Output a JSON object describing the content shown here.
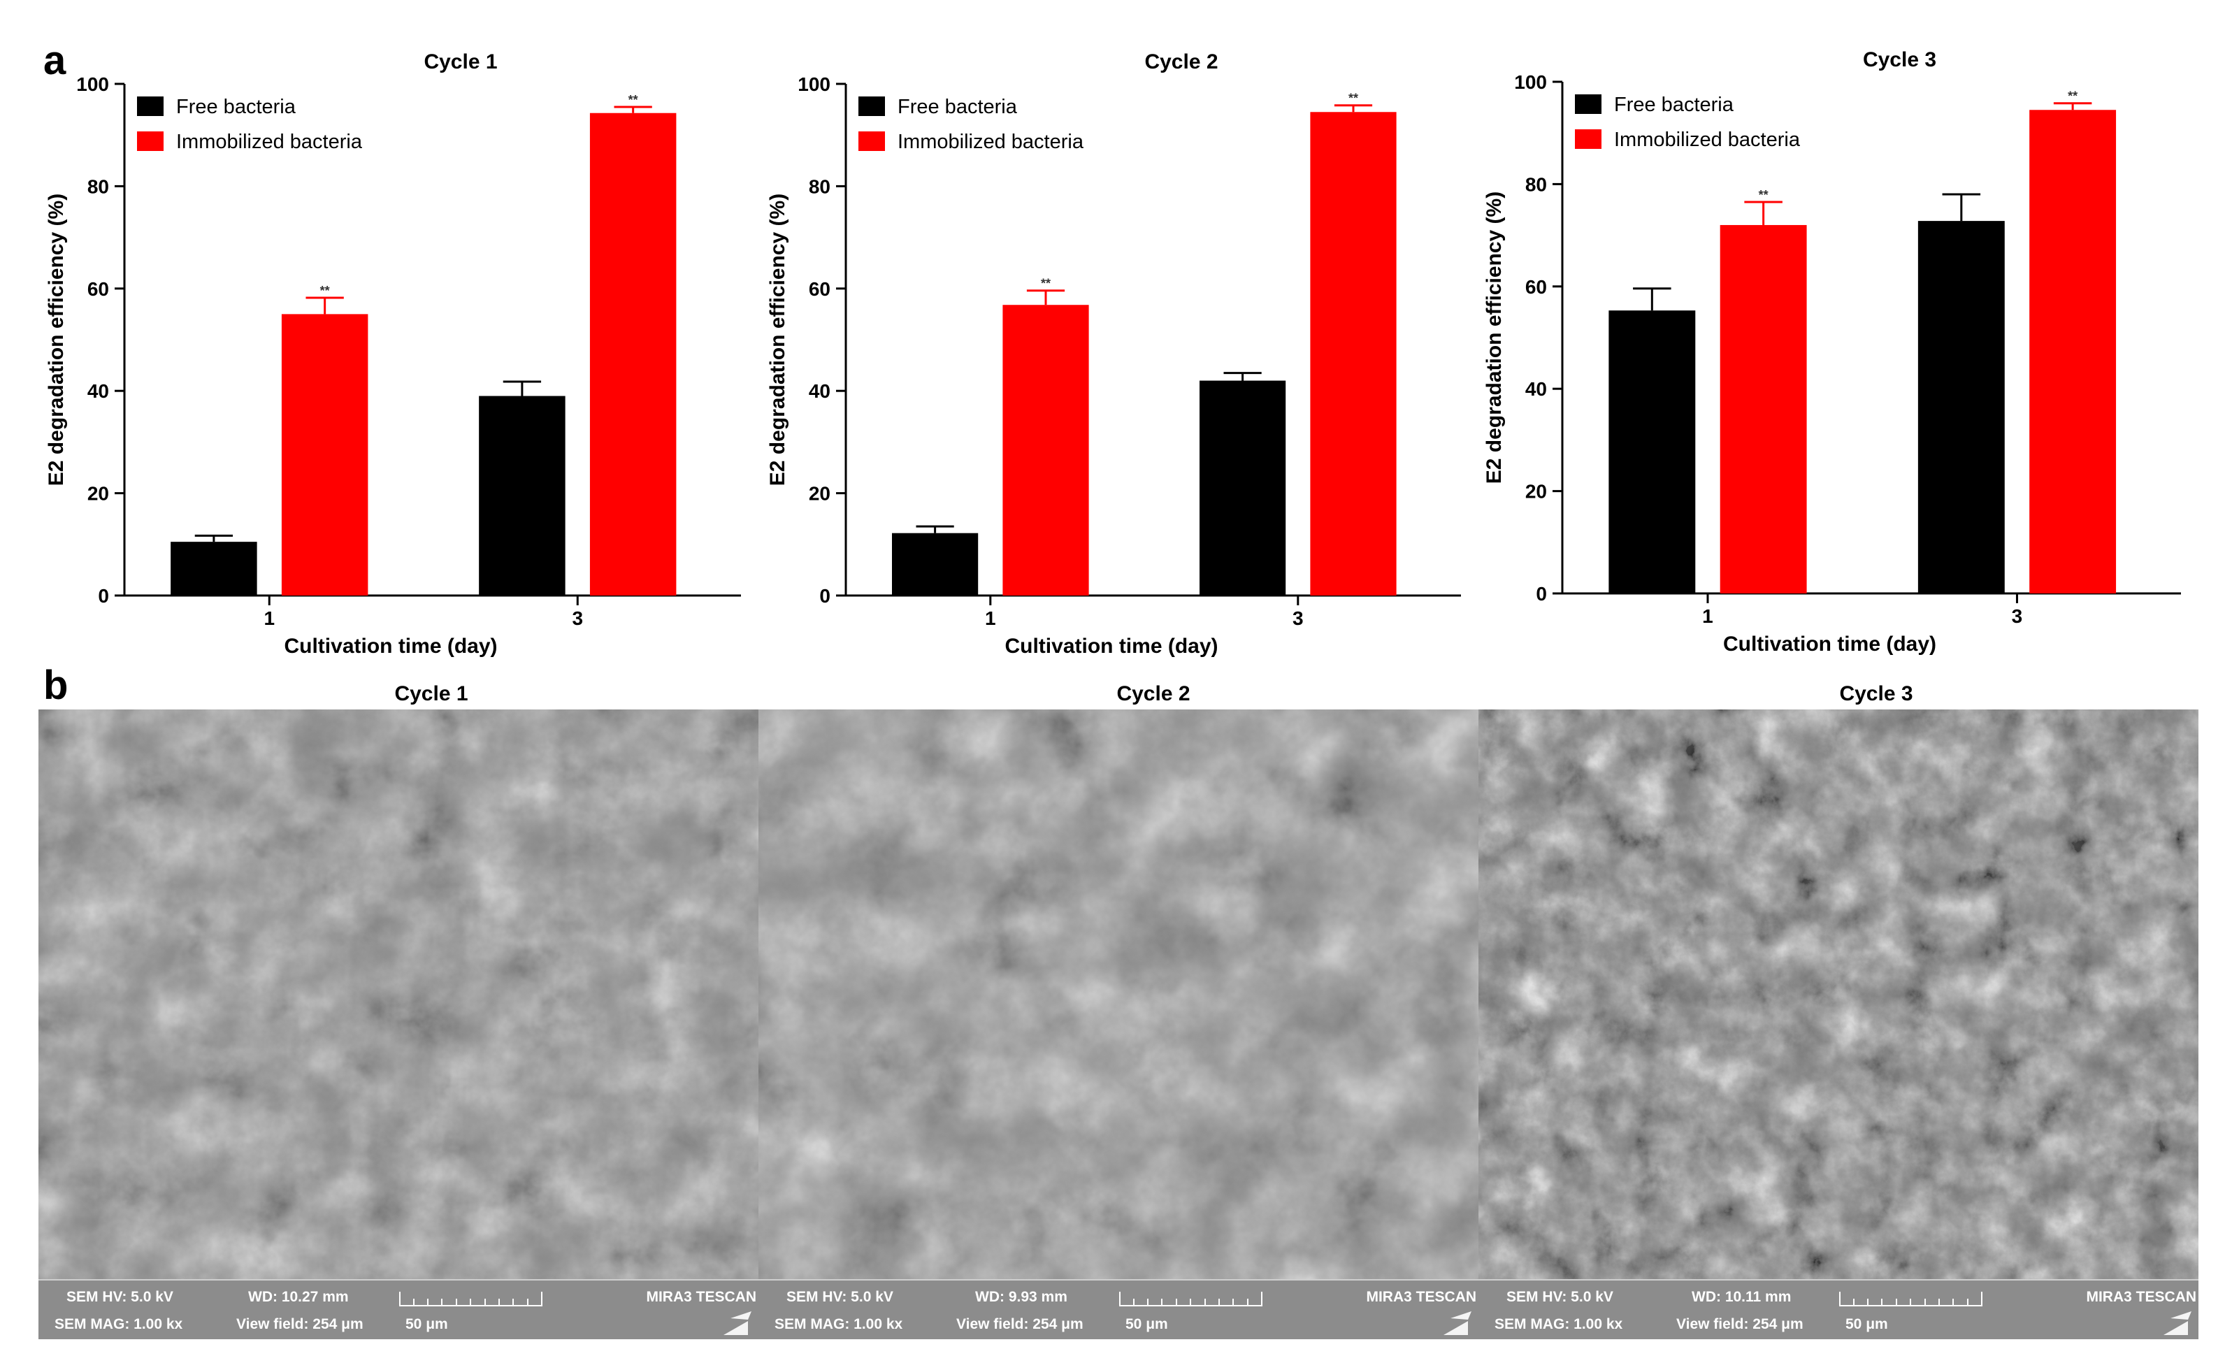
{
  "panel_labels": [
    "a",
    "b"
  ],
  "chart_data": [
    {
      "type": "bar",
      "title": "Cycle 1",
      "xlabel": "Cultivation time (day)",
      "ylabel": "E2 degradation efficiency (%)",
      "ylim": [
        0,
        100
      ],
      "yticks": [
        0,
        20,
        40,
        60,
        80,
        100
      ],
      "categories": [
        "1",
        "3"
      ],
      "legend_position": "top-left",
      "series": [
        {
          "name": "Free bacteria",
          "color": "#000000",
          "values": [
            10.5,
            39
          ],
          "errors": [
            1.2,
            2.8
          ],
          "significance": [
            "",
            ""
          ]
        },
        {
          "name": "Immobilized bacteria",
          "color": "#ff0000",
          "values": [
            55,
            94.3
          ],
          "errors": [
            3.2,
            1.2
          ],
          "significance": [
            "**",
            "**"
          ]
        }
      ]
    },
    {
      "type": "bar",
      "title": "Cycle 2",
      "xlabel": "Cultivation time (day)",
      "ylabel": "E2 degradation efficiency (%)",
      "ylim": [
        0,
        100
      ],
      "yticks": [
        0,
        20,
        40,
        60,
        80,
        100
      ],
      "categories": [
        "1",
        "3"
      ],
      "legend_position": "top-left",
      "series": [
        {
          "name": "Free bacteria",
          "color": "#000000",
          "values": [
            12.2,
            42
          ],
          "errors": [
            1.3,
            1.5
          ],
          "significance": [
            "",
            ""
          ]
        },
        {
          "name": "Immobilized bacteria",
          "color": "#ff0000",
          "values": [
            56.8,
            94.5
          ],
          "errors": [
            2.8,
            1.3
          ],
          "significance": [
            "**",
            "**"
          ]
        }
      ]
    },
    {
      "type": "bar",
      "title": "Cycle 3",
      "xlabel": "Cultivation time (day)",
      "ylabel": "E2 degradation efficiency (%)",
      "ylim": [
        0,
        100
      ],
      "yticks": [
        0,
        20,
        40,
        60,
        80,
        100
      ],
      "categories": [
        "1",
        "3"
      ],
      "legend_position": "top-left",
      "series": [
        {
          "name": "Free bacteria",
          "color": "#000000",
          "values": [
            55.3,
            72.8
          ],
          "errors": [
            4.3,
            5.2
          ],
          "significance": [
            "",
            ""
          ]
        },
        {
          "name": "Immobilized bacteria",
          "color": "#ff0000",
          "values": [
            72,
            94.5
          ],
          "errors": [
            4.5,
            1.3
          ],
          "significance": [
            "**",
            "**"
          ]
        }
      ]
    }
  ],
  "sem_images": [
    {
      "title": "Cycle 1",
      "hv": "SEM HV: 5.0 kV",
      "wd": "WD: 10.27 mm",
      "mag": "SEM MAG: 1.00 kx",
      "view": "View field: 254 μm",
      "scale": "50 μm",
      "brand": "MIRA3 TESCAN"
    },
    {
      "title": "Cycle 2",
      "hv": "SEM HV: 5.0 kV",
      "wd": "WD: 9.93 mm",
      "mag": "SEM MAG: 1.00 kx",
      "view": "View field: 254 μm",
      "scale": "50 μm",
      "brand": "MIRA3 TESCAN"
    },
    {
      "title": "Cycle 3",
      "hv": "SEM HV: 5.0 kV",
      "wd": "WD: 10.11 mm",
      "mag": "SEM MAG: 1.00 kx",
      "view": "View field: 254 μm",
      "scale": "50 μm",
      "brand": "MIRA3 TESCAN"
    }
  ]
}
